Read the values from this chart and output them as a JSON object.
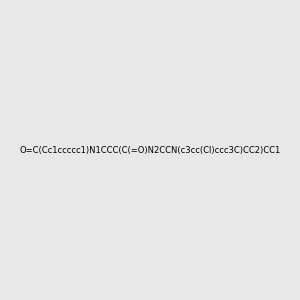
{
  "smiles": "O=C(Cc1ccccc1)N1CCC(C(=O)N2CCN(c3cc(Cl)ccc3C)CC2)CC1",
  "title": "",
  "background_color": "#e8e8e8",
  "atom_color_N": "#0000ff",
  "atom_color_O": "#ff0000",
  "atom_color_Cl": "#00aa00",
  "atom_color_C": "#000000",
  "fig_width": 3.0,
  "fig_height": 3.0,
  "dpi": 100
}
